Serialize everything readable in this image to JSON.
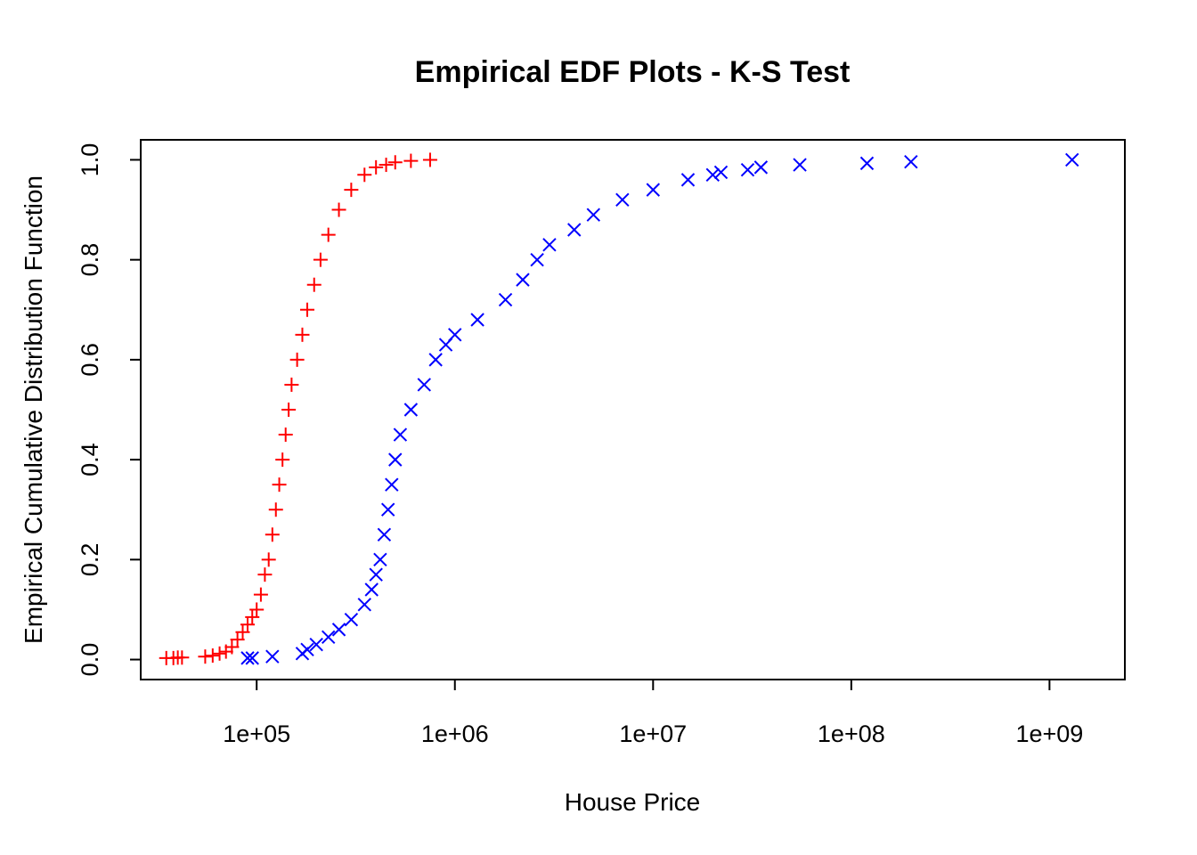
{
  "chart_data": {
    "type": "scatter",
    "title": "Empirical EDF Plots - K-S Test",
    "xlabel": "House Price",
    "ylabel": "Empirical Cumulative Distribution Function",
    "x_scale": "log10",
    "xlim": [
      26000,
      2400000000
    ],
    "ylim": [
      -0.04,
      1.04
    ],
    "x_ticks": [
      {
        "value": 100000,
        "label": "1e+05"
      },
      {
        "value": 1000000,
        "label": "1e+06"
      },
      {
        "value": 10000000,
        "label": "1e+07"
      },
      {
        "value": 100000000,
        "label": "1e+08"
      },
      {
        "value": 1000000000,
        "label": "1e+09"
      }
    ],
    "y_ticks": [
      {
        "value": 0.0,
        "label": "0.0"
      },
      {
        "value": 0.2,
        "label": "0.2"
      },
      {
        "value": 0.4,
        "label": "0.4"
      },
      {
        "value": 0.6,
        "label": "0.6"
      },
      {
        "value": 0.8,
        "label": "0.8"
      },
      {
        "value": 1.0,
        "label": "1.0"
      }
    ],
    "grid": false,
    "colors": {
      "series1": "#ff0000",
      "series2": "#0000ff"
    },
    "series": [
      {
        "marker": "plus",
        "color": "#ff0000",
        "points": [
          [
            35000,
            0.003
          ],
          [
            38000,
            0.003
          ],
          [
            40000,
            0.004
          ],
          [
            42000,
            0.004
          ],
          [
            55000,
            0.006
          ],
          [
            60000,
            0.008
          ],
          [
            65000,
            0.012
          ],
          [
            70000,
            0.016
          ],
          [
            75000,
            0.025
          ],
          [
            80000,
            0.04
          ],
          [
            85000,
            0.055
          ],
          [
            90000,
            0.07
          ],
          [
            95000,
            0.085
          ],
          [
            100000,
            0.1
          ],
          [
            105000,
            0.13
          ],
          [
            110000,
            0.17
          ],
          [
            115000,
            0.2
          ],
          [
            120000,
            0.25
          ],
          [
            125000,
            0.3
          ],
          [
            130000,
            0.35
          ],
          [
            135000,
            0.4
          ],
          [
            140000,
            0.45
          ],
          [
            145000,
            0.5
          ],
          [
            150000,
            0.55
          ],
          [
            160000,
            0.6
          ],
          [
            170000,
            0.65
          ],
          [
            180000,
            0.7
          ],
          [
            195000,
            0.75
          ],
          [
            210000,
            0.8
          ],
          [
            230000,
            0.85
          ],
          [
            260000,
            0.9
          ],
          [
            300000,
            0.94
          ],
          [
            350000,
            0.97
          ],
          [
            400000,
            0.985
          ],
          [
            450000,
            0.99
          ],
          [
            500000,
            0.995
          ],
          [
            600000,
            0.998
          ],
          [
            750000,
            1.0
          ]
        ]
      },
      {
        "marker": "x",
        "color": "#0000ff",
        "points": [
          [
            90000,
            0.003
          ],
          [
            95000,
            0.003
          ],
          [
            120000,
            0.006
          ],
          [
            170000,
            0.012
          ],
          [
            180000,
            0.02
          ],
          [
            200000,
            0.03
          ],
          [
            230000,
            0.045
          ],
          [
            260000,
            0.06
          ],
          [
            300000,
            0.08
          ],
          [
            350000,
            0.11
          ],
          [
            380000,
            0.14
          ],
          [
            400000,
            0.17
          ],
          [
            420000,
            0.2
          ],
          [
            440000,
            0.25
          ],
          [
            460000,
            0.3
          ],
          [
            480000,
            0.35
          ],
          [
            500000,
            0.4
          ],
          [
            530000,
            0.45
          ],
          [
            600000,
            0.5
          ],
          [
            700000,
            0.55
          ],
          [
            800000,
            0.6
          ],
          [
            900000,
            0.63
          ],
          [
            1000000,
            0.65
          ],
          [
            1300000,
            0.68
          ],
          [
            1800000,
            0.72
          ],
          [
            2200000,
            0.76
          ],
          [
            2600000,
            0.8
          ],
          [
            3000000,
            0.83
          ],
          [
            4000000,
            0.86
          ],
          [
            5000000,
            0.89
          ],
          [
            7000000,
            0.92
          ],
          [
            10000000,
            0.94
          ],
          [
            15000000,
            0.96
          ],
          [
            20000000,
            0.97
          ],
          [
            22000000,
            0.975
          ],
          [
            30000000,
            0.98
          ],
          [
            35000000,
            0.985
          ],
          [
            55000000,
            0.99
          ],
          [
            120000000,
            0.993
          ],
          [
            200000000,
            0.996
          ],
          [
            1300000000,
            1.0
          ]
        ]
      }
    ]
  }
}
